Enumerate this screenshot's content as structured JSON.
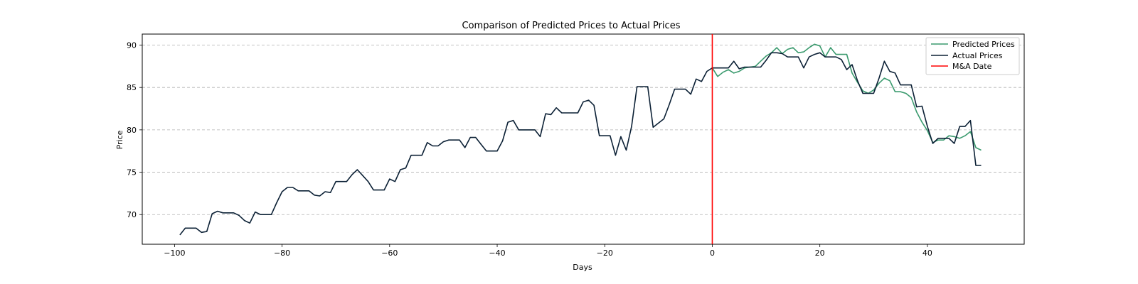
{
  "chart_data": {
    "type": "line",
    "title": "Comparison of Predicted Prices to Actual Prices",
    "xlabel": "Days",
    "ylabel": "Price",
    "xlim": [
      -106,
      58
    ],
    "ylim": [
      66.5,
      91.3
    ],
    "xticks": [
      -100,
      -80,
      -60,
      -40,
      -20,
      0,
      20,
      40
    ],
    "xtick_labels": [
      "−100",
      "−80",
      "−60",
      "−40",
      "−20",
      "0",
      "20",
      "40"
    ],
    "yticks": [
      70,
      75,
      80,
      85,
      90
    ],
    "ytick_labels": [
      "70",
      "75",
      "80",
      "85",
      "90"
    ],
    "grid": "horizontal dashed",
    "legend_position": "top-right",
    "vline": {
      "name": "M&A Date",
      "x": 0,
      "color": "#ff0000"
    },
    "series": [
      {
        "name": "Predicted Prices",
        "color": "#3a9a6e",
        "x": [
          0,
          1,
          2,
          3,
          4,
          5,
          6,
          7,
          8,
          9,
          10,
          11,
          12,
          13,
          14,
          15,
          16,
          17,
          18,
          19,
          20,
          21,
          22,
          23,
          24,
          25,
          26,
          27,
          28,
          29,
          30,
          31,
          32,
          33,
          34,
          35,
          36,
          37,
          38,
          39,
          40,
          41,
          42,
          43,
          44,
          45,
          46,
          47,
          48,
          49,
          50
        ],
        "values": [
          87.3,
          86.3,
          86.8,
          87.1,
          86.7,
          86.9,
          87.3,
          87.4,
          87.5,
          88.1,
          88.7,
          89.1,
          89.7,
          89.0,
          89.5,
          89.7,
          89.1,
          89.2,
          89.7,
          90.1,
          89.9,
          88.6,
          89.7,
          88.9,
          88.9,
          88.9,
          86.7,
          85.6,
          84.6,
          84.3,
          84.7,
          85.5,
          86.1,
          85.8,
          84.5,
          84.5,
          84.3,
          83.8,
          82.1,
          80.9,
          79.9,
          78.5,
          78.8,
          78.8,
          79.3,
          79.2,
          79.0,
          79.3,
          79.8,
          77.9,
          77.6
        ]
      },
      {
        "name": "Actual Prices",
        "color": "#0b2035",
        "x": [
          -99,
          -98,
          -97,
          -96,
          -95,
          -94,
          -93,
          -92,
          -91,
          -90,
          -89,
          -88,
          -87,
          -86,
          -85,
          -84,
          -83,
          -82,
          -81,
          -80,
          -79,
          -78,
          -77,
          -76,
          -75,
          -74,
          -73,
          -72,
          -71,
          -70,
          -69,
          -68,
          -67,
          -66,
          -65,
          -64,
          -63,
          -62,
          -61,
          -60,
          -59,
          -58,
          -57,
          -56,
          -55,
          -54,
          -53,
          -52,
          -51,
          -50,
          -49,
          -48,
          -47,
          -46,
          -45,
          -44,
          -43,
          -42,
          -41,
          -40,
          -39,
          -38,
          -37,
          -36,
          -35,
          -34,
          -33,
          -32,
          -31,
          -30,
          -29,
          -28,
          -27,
          -26,
          -25,
          -24,
          -23,
          -22,
          -21,
          -20,
          -19,
          -18,
          -17,
          -16,
          -15,
          -14,
          -13,
          -12,
          -11,
          -10,
          -9,
          -8,
          -7,
          -6,
          -5,
          -4,
          -3,
          -2,
          -1,
          0,
          1,
          2,
          3,
          4,
          5,
          6,
          7,
          8,
          9,
          10,
          11,
          12,
          13,
          14,
          15,
          16,
          17,
          18,
          19,
          20,
          21,
          22,
          23,
          24,
          25,
          26,
          27,
          28,
          29,
          30,
          31,
          32,
          33,
          34,
          35,
          36,
          37,
          38,
          39,
          40,
          41,
          42,
          43,
          44,
          45,
          46,
          47,
          48,
          49,
          50
        ],
        "values": [
          67.6,
          68.4,
          68.4,
          68.4,
          67.9,
          68.0,
          70.1,
          70.4,
          70.2,
          70.2,
          70.2,
          69.9,
          69.3,
          69.0,
          70.3,
          70.0,
          70.0,
          70.0,
          71.4,
          72.7,
          73.2,
          73.2,
          72.8,
          72.8,
          72.8,
          72.3,
          72.2,
          72.7,
          72.6,
          73.9,
          73.9,
          73.9,
          74.7,
          75.3,
          74.6,
          73.9,
          72.9,
          72.9,
          72.9,
          74.2,
          73.9,
          75.3,
          75.5,
          77.0,
          77.0,
          77.0,
          78.5,
          78.1,
          78.1,
          78.6,
          78.8,
          78.8,
          78.8,
          77.9,
          79.1,
          79.1,
          78.3,
          77.5,
          77.5,
          77.5,
          78.7,
          80.9,
          81.1,
          80.0,
          80.0,
          80.0,
          80.0,
          79.2,
          81.9,
          81.8,
          82.6,
          82.0,
          82.0,
          82.0,
          82.0,
          83.3,
          83.5,
          82.9,
          79.3,
          79.3,
          79.3,
          77.0,
          79.2,
          77.6,
          80.4,
          85.1,
          85.1,
          85.1,
          80.3,
          80.8,
          81.3,
          83.0,
          84.8,
          84.8,
          84.8,
          84.2,
          86.0,
          85.7,
          86.9,
          87.3,
          87.3,
          87.3,
          87.3,
          88.1,
          87.2,
          87.4,
          87.4,
          87.4,
          87.4,
          88.2,
          89.1,
          89.1,
          89.0,
          88.6,
          88.6,
          88.6,
          87.3,
          88.6,
          88.9,
          89.1,
          88.6,
          88.6,
          88.6,
          88.3,
          87.1,
          87.7,
          85.8,
          84.3,
          84.3,
          84.3,
          86.1,
          88.1,
          86.9,
          86.7,
          85.3,
          85.3,
          85.3,
          82.7,
          82.8,
          80.4,
          78.4,
          79.0,
          79.0,
          79.0,
          78.4,
          80.4,
          80.4,
          81.1,
          75.8,
          75.8
        ]
      }
    ]
  }
}
